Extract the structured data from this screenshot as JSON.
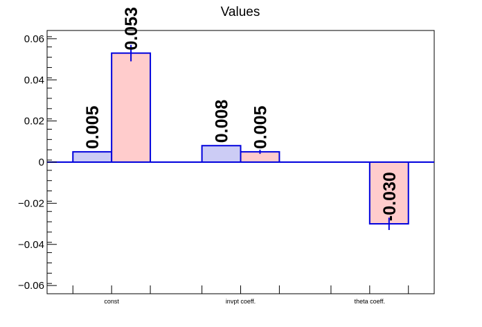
{
  "chart_data": {
    "type": "bar",
    "title": "Values",
    "xlabel": "",
    "ylabel": "",
    "categories": [
      "const",
      "invpt coeff.",
      "theta coeff."
    ],
    "ylim": [
      -0.064,
      0.064
    ],
    "yticks": [
      -0.06,
      -0.04,
      -0.02,
      0,
      0.02,
      0.04,
      0.06
    ],
    "ytick_labels": [
      "−0.06",
      "−0.04",
      "−0.02",
      "0",
      "0.02",
      "0.04",
      "0.06"
    ],
    "grid": false,
    "colors": {
      "series_a_fill": "#ccccf5",
      "series_b_fill": "#ffcccc",
      "bar_stroke": "#0000dd",
      "zero_line": "#0000dd",
      "axis": "#000000"
    },
    "series": [
      {
        "values": [
          0.005,
          0.008,
          null
        ],
        "errors": [
          0,
          0,
          null
        ],
        "labels": [
          "0.005",
          "0.008",
          ""
        ]
      },
      {
        "values": [
          0.053,
          0.005,
          -0.03
        ],
        "errors": [
          0.004,
          0.001,
          0.003
        ],
        "labels": [
          "0.053",
          "0.005",
          "-0.030"
        ]
      }
    ]
  }
}
